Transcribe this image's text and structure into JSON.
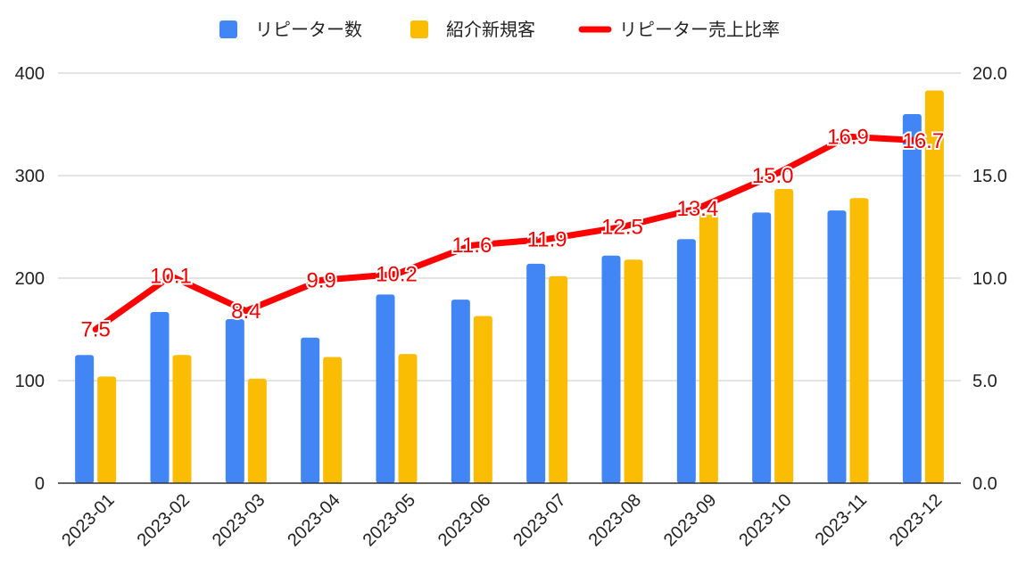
{
  "chart_data": {
    "type": "bar",
    "categories": [
      "2023-01",
      "2023-02",
      "2023-03",
      "2023-04",
      "2023-05",
      "2023-06",
      "2023-07",
      "2023-08",
      "2023-09",
      "2023-10",
      "2023-11",
      "2023-12"
    ],
    "series": [
      {
        "name": "リピーター数",
        "type": "bar",
        "axis": "left",
        "color": "#4285f4",
        "values": [
          125,
          167,
          160,
          142,
          184,
          179,
          214,
          222,
          238,
          264,
          266,
          360
        ]
      },
      {
        "name": "紹介新規客",
        "type": "bar",
        "axis": "left",
        "color": "#fbbc04",
        "values": [
          104,
          125,
          102,
          123,
          126,
          163,
          202,
          218,
          262,
          287,
          278,
          383
        ]
      },
      {
        "name": "リピーター売上比率",
        "type": "line",
        "axis": "right",
        "color": "#ff0000",
        "values": [
          7.5,
          10.1,
          8.4,
          9.9,
          10.2,
          11.6,
          11.9,
          12.5,
          13.4,
          15.0,
          16.9,
          16.7
        ],
        "labels": [
          "7.5",
          "10.1",
          "8.4",
          "9.9",
          "10.2",
          "11.6",
          "11.9",
          "12.5",
          "13.4",
          "15.0",
          "16.9",
          "16.7"
        ]
      }
    ],
    "y_left": {
      "ylim": [
        0,
        400
      ],
      "ticks": [
        "0",
        "100",
        "200",
        "300",
        "400"
      ]
    },
    "y_right": {
      "ylim": [
        0,
        20
      ],
      "ticks": [
        "0.0",
        "5.0",
        "10.0",
        "15.0",
        "20.0"
      ]
    },
    "title": "",
    "xlabel": "",
    "ylabel": "",
    "grid": true,
    "legend_position": "top"
  }
}
